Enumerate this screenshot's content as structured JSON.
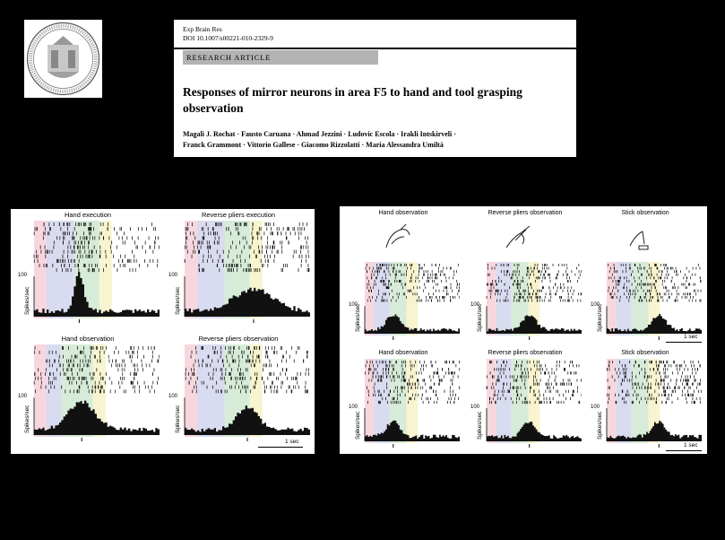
{
  "header": {
    "journal": "Exp Brain Res",
    "doi": "DOI 10.1007/s00221-010-2329-9",
    "article_type": "RESEARCH ARTICLE",
    "title": "Responses of mirror neurons in area F5 to hand and tool grasping observation",
    "authors_line1": "Magali J. Rochat · Fausto Caruana · Ahmad Jezzini · Ludovic Escola · Irakli Intskirveli ·",
    "authors_line2": "Franck Grammont · Vittorio Gallese · Giacomo Rizzolatti · Maria Alessandra Umiltà"
  },
  "colors": {
    "band_pink": "#f7d7de",
    "band_blue": "#d9dbf0",
    "band_green": "#d6ecd8",
    "band_yellow": "#f8f4cf",
    "background": "#000000",
    "panel": "#ffffff"
  },
  "figure_left": {
    "subplots": [
      {
        "title": "Hand execution",
        "ylabel": "Spikes/sec",
        "ytick": "100"
      },
      {
        "title": "Reverse pliers execution",
        "ylabel": "Spikes/sec",
        "ytick": "100"
      },
      {
        "title": "Hand observation",
        "ylabel": "Spikes/sec",
        "ytick": "100"
      },
      {
        "title": "Reverse pliers observation",
        "ylabel": "Spikes/sec",
        "ytick": "100"
      }
    ],
    "scale_label": "1 sec"
  },
  "figure_right": {
    "subplots": [
      {
        "title": "Hand observation",
        "ylabel": "Spikes/sec",
        "ytick": "100"
      },
      {
        "title": "Reverse pliers observation",
        "ylabel": "Spikes/sec",
        "ytick": "100"
      },
      {
        "title": "Stick observation",
        "ylabel": "Spikes/sec",
        "ytick": "100"
      },
      {
        "title": "Hand observation",
        "ylabel": "Spikes/sec",
        "ytick": "100"
      },
      {
        "title": "Reverse pliers observation",
        "ylabel": "Spikes/sec",
        "ytick": "100"
      },
      {
        "title": "Stick observation",
        "ylabel": "Spikes/sec",
        "ytick": "100"
      }
    ],
    "pictograms": [
      "hand-grasp-icon",
      "pliers-grasp-icon",
      "stick-grasp-icon"
    ],
    "scale_label_top": "1 sec",
    "scale_label_bottom": "1 sec"
  }
}
